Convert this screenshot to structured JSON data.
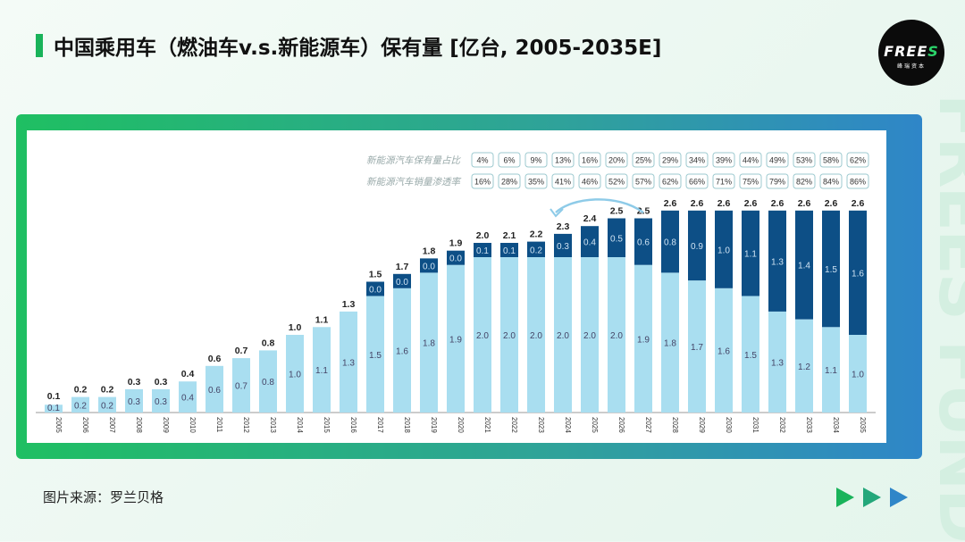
{
  "title": "中国乘用车（燃油车v.s.新能源车）保有量 [亿台, 2005-2035E]",
  "source": "图片来源：罗兰贝格",
  "logo": {
    "brand": "FREES",
    "sub": "峰瑞资本"
  },
  "watermark": "FREES FUND",
  "colors": {
    "fuel": "#a9def0",
    "nev": "#0d4f86",
    "accent": "#19b35a"
  },
  "chart_data": {
    "type": "bar",
    "stacked": true,
    "categories": [
      "2005",
      "2006",
      "2007",
      "2008",
      "2009",
      "2010",
      "2011",
      "2012",
      "2013",
      "2014",
      "2015",
      "2016",
      "2017",
      "2018",
      "2019",
      "2020",
      "2021",
      "2022",
      "2023",
      "2024",
      "2025",
      "2026",
      "2027",
      "2028",
      "2029",
      "2030",
      "2031",
      "2032",
      "2033",
      "2034",
      "2035"
    ],
    "series": [
      {
        "values": [
          0.1,
          0.2,
          0.2,
          0.3,
          0.3,
          0.4,
          0.6,
          0.7,
          0.8,
          1.0,
          1.1,
          1.3,
          1.5,
          1.6,
          1.8,
          1.9,
          2.0,
          2.0,
          2.0,
          2.0,
          2.0,
          2.0,
          1.9,
          1.8,
          1.7,
          1.6,
          1.5,
          1.3,
          1.2,
          1.1,
          1.0
        ]
      },
      {
        "values": [
          null,
          null,
          null,
          null,
          null,
          null,
          null,
          null,
          null,
          null,
          null,
          null,
          0.0,
          0.0,
          0.0,
          0.0,
          0.1,
          0.1,
          0.2,
          0.3,
          0.4,
          0.5,
          0.6,
          0.8,
          0.9,
          1.0,
          1.1,
          1.3,
          1.4,
          1.5,
          1.6
        ]
      }
    ],
    "totals": [
      0.1,
      0.2,
      0.2,
      0.3,
      0.3,
      0.4,
      0.6,
      0.7,
      0.8,
      1.0,
      1.1,
      1.3,
      1.5,
      1.7,
      1.8,
      1.9,
      2.0,
      2.1,
      2.2,
      2.3,
      2.4,
      2.5,
      2.5,
      2.6,
      2.6,
      2.6,
      2.6,
      2.6,
      2.6,
      2.6,
      2.6
    ],
    "table": {
      "years": [
        "2021",
        "2022",
        "2023",
        "2024",
        "2025",
        "2026",
        "2027",
        "2028",
        "2029",
        "2030",
        "2031",
        "2032",
        "2033",
        "2034",
        "2035"
      ],
      "rows": [
        {
          "label": "新能源汽车保有量占比",
          "values": [
            "4%",
            "6%",
            "9%",
            "13%",
            "16%",
            "20%",
            "25%",
            "29%",
            "34%",
            "39%",
            "44%",
            "49%",
            "53%",
            "58%",
            "62%"
          ]
        },
        {
          "label": "新能源汽车销量渗透率",
          "values": [
            "16%",
            "28%",
            "35%",
            "41%",
            "46%",
            "52%",
            "57%",
            "62%",
            "66%",
            "71%",
            "75%",
            "79%",
            "82%",
            "84%",
            "86%"
          ]
        }
      ]
    }
  }
}
